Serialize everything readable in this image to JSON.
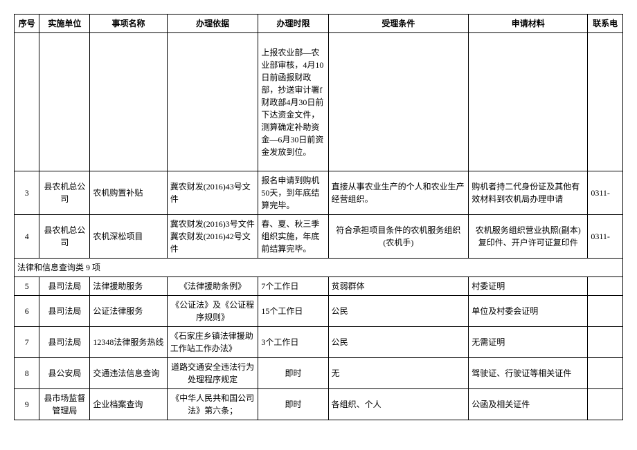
{
  "columns": [
    {
      "key": "c0",
      "label": "序号"
    },
    {
      "key": "c1",
      "label": "实施单位"
    },
    {
      "key": "c2",
      "label": "事项名称"
    },
    {
      "key": "c3",
      "label": "办理依据"
    },
    {
      "key": "c4",
      "label": "办理时限"
    },
    {
      "key": "c5",
      "label": "受理条件"
    },
    {
      "key": "c6",
      "label": "申请材料"
    },
    {
      "key": "c7",
      "label": "联系电"
    }
  ],
  "spillRow": {
    "c4": "上报农业部—农业部审核，4月10日前函报财政部，抄送审计署f财政部4月30日前下达资金文件，测算确定补助资金—6月30日前资金发放到位。"
  },
  "rows": [
    {
      "c0": "3",
      "c1": "县农机总公司",
      "c2": "农机购置补贴",
      "c3": "冀农财发(2016)43号文件",
      "c4": "报名申请到购机50天，到年底结算完毕。",
      "c5": "直接从事农业生产的个人和农业生产经营组织。",
      "c6": "购机者持二代身份证及其他有效材料到农机局办理申请",
      "c7": "0311-"
    },
    {
      "c0": "4",
      "c1": "县农机总公司",
      "c2": "农机深松项目",
      "c3": "冀农财发(2016)3号文件 冀农财发(2016)42号文件",
      "c4": "春、夏、秋三季组织实施，年底前结算完毕。",
      "c5": "符合承担项目条件的农机服务组织(农机手)",
      "c6": "农机服务组织营业执照(副本)复印件、开户许可证复印件",
      "c7": "0311-"
    }
  ],
  "sectionHeader": "法律和信息查询类 9 项",
  "rows2": [
    {
      "c0": "5",
      "c1": "县司法局",
      "c2": "法律援助服务",
      "c3": "《法律援助条例》",
      "c4": "7个工作日",
      "c5": "贫弱群体",
      "c6": "村委证明",
      "c7": ""
    },
    {
      "c0": "6",
      "c1": "县司法局",
      "c2": "公证法律服务",
      "c3": "《公证法》及《公证程序规则》",
      "c4": "15个工作日",
      "c5": "公民",
      "c6": "单位及村委会证明",
      "c7": ""
    },
    {
      "c0": "7",
      "c1": "县司法局",
      "c2": "12348法律服务热线",
      "c3": "《石家庄乡镇法律援助工作站工作办法》",
      "c4": "3个工作日",
      "c5": "公民",
      "c6": "无需证明",
      "c7": ""
    },
    {
      "c0": "8",
      "c1": "县公安局",
      "c2": "交通违法信息查询",
      "c3": "道路交通安全违法行为处理程序规定",
      "c4": "即时",
      "c5": "无",
      "c6": "驾驶证、行驶证等相关证件",
      "c7": ""
    },
    {
      "c0": "9",
      "c1": "县市场监督管理局",
      "c2": "企业档案查询",
      "c3": "《中华人民共和国公司法》第六条；",
      "c4": "即时",
      "c5": "各组织、个人",
      "c6": "公函及相关证件",
      "c7": ""
    }
  ]
}
